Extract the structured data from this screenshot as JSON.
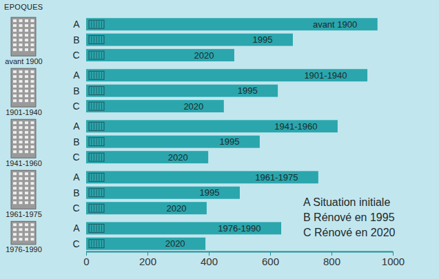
{
  "chart_data": {
    "type": "bar",
    "orientation": "horizontal",
    "title": "EPOQUES",
    "categories": [
      "avant 1900",
      "1901-1940",
      "1941-1960",
      "1961-1975",
      "1976-1990"
    ],
    "series": [
      {
        "name": "A",
        "label": "Situation initiale",
        "color": "#2ba6ad",
        "values": [
          950,
          917,
          820,
          757,
          636
        ],
        "bar_labels": [
          "avant 1900",
          "1901-1940",
          "1941-1960",
          "1961-1975",
          "1976-1990"
        ]
      },
      {
        "name": "B",
        "label": "Rénové en 1995",
        "color": "#2ba6ad",
        "values": [
          674,
          625,
          566,
          501,
          null
        ],
        "bar_labels": [
          "1995",
          "1995",
          "1995",
          "1995",
          null
        ]
      },
      {
        "name": "C",
        "label": "Rénové en 2020",
        "color": "#2ba6ad",
        "values": [
          483,
          449,
          398,
          393,
          389
        ],
        "bar_labels": [
          "2020",
          "2020",
          "2020",
          "2020",
          "2020"
        ]
      }
    ],
    "xlim": [
      0,
      1000
    ],
    "xticks": [
      0,
      200,
      400,
      600,
      800,
      1000
    ],
    "grid": false,
    "legend": "bottom-right"
  }
}
